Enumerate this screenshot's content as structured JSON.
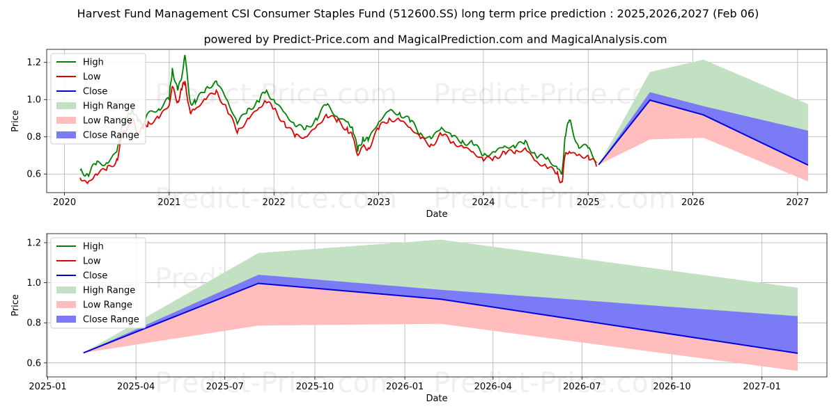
{
  "header": {
    "title": "Harvest Fund Management CSI Consumer Staples Fund (512600.SS) long term price prediction : 2025,2026,2027 (Feb 06)",
    "subtitle": "powered by Predict-Price.com and MagicalPrediction.com and MagicalAnalysis.com"
  },
  "watermark": "Predict-Price.com",
  "colors": {
    "high": "#008000",
    "low": "#e00000",
    "close": "#0000dd",
    "high_range": "#c2e0c2",
    "low_range": "#ffbdbd",
    "close_range": "#7b7bf7"
  },
  "chart_data": [
    {
      "type": "line",
      "name": "history_and_forecast",
      "xlabel": "Date",
      "ylabel": "Price",
      "xlim": [
        2019.83,
        2027.28
      ],
      "ylim": [
        0.5,
        1.27
      ],
      "x_ticks": [
        2020,
        2021,
        2022,
        2023,
        2024,
        2025,
        2026,
        2027
      ],
      "x_tick_labels": [
        "2020",
        "2021",
        "2022",
        "2023",
        "2024",
        "2025",
        "2026",
        "2027"
      ],
      "y_ticks": [
        0.6,
        0.8,
        1.0,
        1.2
      ],
      "y_tick_labels": [
        "0.6",
        "0.8",
        "1.0",
        "1.2"
      ],
      "grid": true,
      "legend": [
        "High",
        "Low",
        "Close",
        "High Range",
        "Low Range",
        "Close Range"
      ],
      "legend_position": "upper-left",
      "history": {
        "x": [
          2020.15,
          2020.22,
          2020.3,
          2020.4,
          2020.5,
          2020.55,
          2020.6,
          2020.65,
          2020.7,
          2020.75,
          2020.8,
          2020.9,
          2021.0,
          2021.03,
          2021.08,
          2021.12,
          2021.15,
          2021.2,
          2021.25,
          2021.35,
          2021.45,
          2021.55,
          2021.65,
          2021.75,
          2021.85,
          2021.92,
          2022.0,
          2022.1,
          2022.2,
          2022.3,
          2022.4,
          2022.5,
          2022.6,
          2022.7,
          2022.75,
          2022.8,
          2022.85,
          2022.9,
          2023.0,
          2023.1,
          2023.2,
          2023.3,
          2023.4,
          2023.5,
          2023.6,
          2023.7,
          2023.8,
          2023.9,
          2024.0,
          2024.1,
          2024.2,
          2024.3,
          2024.4,
          2024.5,
          2024.6,
          2024.7,
          2024.75,
          2024.78,
          2024.82,
          2024.9,
          2025.0,
          2025.08
        ],
        "high": [
          0.62,
          0.6,
          0.65,
          0.66,
          0.72,
          0.86,
          0.9,
          0.96,
          0.88,
          0.87,
          0.93,
          0.95,
          1.0,
          1.17,
          1.05,
          1.12,
          1.24,
          0.99,
          0.98,
          1.06,
          1.1,
          1.0,
          0.87,
          0.95,
          0.99,
          1.04,
          1.0,
          0.93,
          0.86,
          0.84,
          0.9,
          0.97,
          0.91,
          0.88,
          0.85,
          0.72,
          0.8,
          0.78,
          0.88,
          0.94,
          0.93,
          0.88,
          0.82,
          0.79,
          0.85,
          0.8,
          0.78,
          0.76,
          0.7,
          0.72,
          0.75,
          0.74,
          0.78,
          0.7,
          0.68,
          0.64,
          0.6,
          0.8,
          0.89,
          0.76,
          0.74,
          0.66
        ],
        "low": [
          0.58,
          0.55,
          0.6,
          0.62,
          0.68,
          0.8,
          0.85,
          0.9,
          0.82,
          0.84,
          0.88,
          0.9,
          0.97,
          1.07,
          0.99,
          1.05,
          1.1,
          0.93,
          0.95,
          1.0,
          1.05,
          0.95,
          0.82,
          0.9,
          0.95,
          0.99,
          0.95,
          0.88,
          0.8,
          0.8,
          0.85,
          0.92,
          0.88,
          0.85,
          0.8,
          0.7,
          0.75,
          0.74,
          0.84,
          0.9,
          0.89,
          0.85,
          0.79,
          0.76,
          0.81,
          0.77,
          0.75,
          0.72,
          0.67,
          0.69,
          0.72,
          0.71,
          0.74,
          0.67,
          0.64,
          0.6,
          0.56,
          0.7,
          0.72,
          0.7,
          0.7,
          0.64
        ]
      },
      "forecast": {
        "x": [
          2025.1,
          2025.59,
          2026.1,
          2027.1
        ],
        "close": [
          0.65,
          0.997,
          0.918,
          0.648
        ],
        "high_range_upper": [
          0.65,
          1.148,
          1.215,
          0.975
        ],
        "high_range_lower": [
          0.65,
          0.997,
          0.918,
          0.648
        ],
        "low_range_upper": [
          0.65,
          0.997,
          0.918,
          0.648
        ],
        "low_range_lower": [
          0.65,
          0.786,
          0.795,
          0.56
        ],
        "close_range_upper": [
          0.65,
          1.04,
          0.965,
          0.833
        ],
        "close_range_lower": [
          0.65,
          0.997,
          0.918,
          0.648
        ]
      }
    },
    {
      "type": "line",
      "name": "forecast_zoom",
      "xlabel": "Date",
      "ylabel": "Price",
      "xlim": [
        2024.997,
        2027.182
      ],
      "ylim": [
        0.53,
        1.245
      ],
      "x_ticks": [
        2025.0,
        2025.247,
        2025.496,
        2025.748,
        2026.0,
        2026.247,
        2026.496,
        2026.748,
        2027.0
      ],
      "x_tick_labels": [
        "2025-01",
        "2025-04",
        "2025-07",
        "2025-10",
        "2026-01",
        "2026-04",
        "2026-07",
        "2026-10",
        "2027-01"
      ],
      "y_ticks": [
        0.6,
        0.8,
        1.0,
        1.2
      ],
      "y_tick_labels": [
        "0.6",
        "0.8",
        "1.0",
        "1.2"
      ],
      "grid": true,
      "legend": [
        "High",
        "Low",
        "Close",
        "High Range",
        "Low Range",
        "Close Range"
      ],
      "legend_position": "upper-left",
      "forecast": {
        "x": [
          2025.1,
          2025.59,
          2026.1,
          2027.1
        ],
        "close": [
          0.65,
          0.997,
          0.918,
          0.648
        ],
        "high_range_upper": [
          0.65,
          1.148,
          1.215,
          0.975
        ],
        "high_range_lower": [
          0.65,
          0.997,
          0.918,
          0.648
        ],
        "low_range_upper": [
          0.65,
          0.997,
          0.918,
          0.648
        ],
        "low_range_lower": [
          0.65,
          0.786,
          0.795,
          0.56
        ],
        "close_range_upper": [
          0.65,
          1.04,
          0.965,
          0.833
        ],
        "close_range_lower": [
          0.65,
          0.997,
          0.918,
          0.648
        ]
      }
    }
  ]
}
